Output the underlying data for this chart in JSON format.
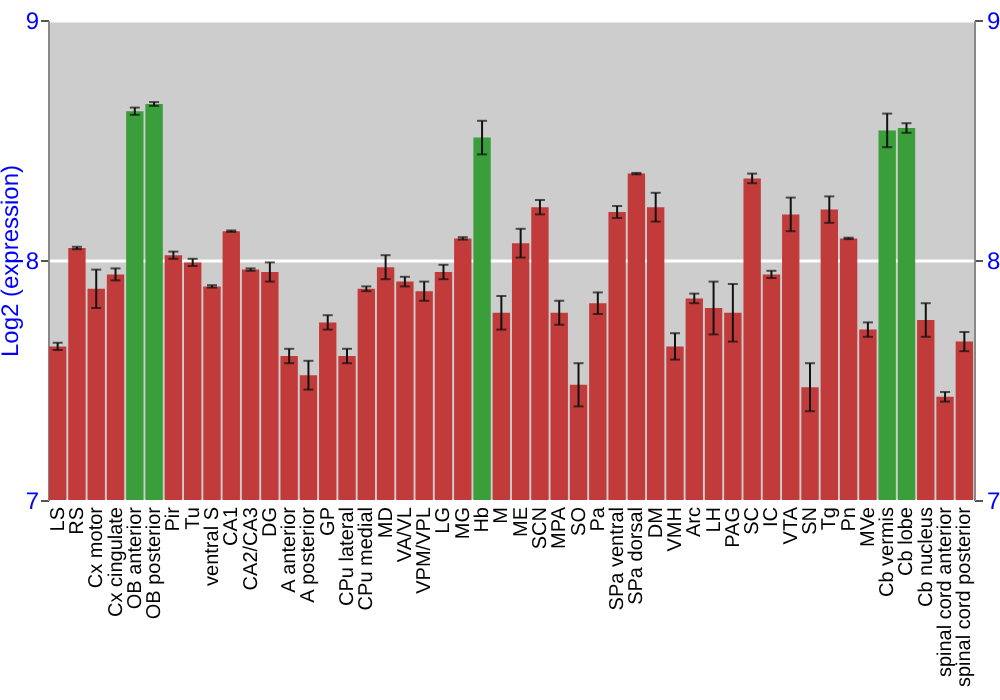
{
  "chart_data": {
    "type": "bar",
    "ylabel": "Log2 (expression)",
    "categories": [
      "LS",
      "RS",
      "Cx motor",
      "Cx cingulate",
      "OB anterior",
      "OB posterior",
      "Pir",
      "Tu",
      "ventral S",
      "CA1",
      "CA2/CA3",
      "DG",
      "A anterior",
      "A posterior",
      "GP",
      "CPu lateral",
      "CPu medial",
      "MD",
      "VA/VL",
      "VPM/VPL",
      "LG",
      "MG",
      "Hb",
      "M",
      "ME",
      "SCN",
      "MPA",
      "SO",
      "Pa",
      "SPa ventral",
      "SPa dorsal",
      "DM",
      "VMH",
      "Arc",
      "LH",
      "PAG",
      "SC",
      "IC",
      "VTA",
      "SN",
      "Tg",
      "Pn",
      "MVe",
      "Cb vermis",
      "Cb lobe",
      "Cb nucleus",
      "spinal cord anterior",
      "spinal cord posterior"
    ],
    "values": [
      7.64,
      8.05,
      7.88,
      7.94,
      8.62,
      8.65,
      8.02,
      7.99,
      7.89,
      8.12,
      7.96,
      7.95,
      7.6,
      7.52,
      7.74,
      7.6,
      7.88,
      7.97,
      7.91,
      7.87,
      7.95,
      8.09,
      8.51,
      7.78,
      8.07,
      8.22,
      7.78,
      7.48,
      7.82,
      8.2,
      8.36,
      8.22,
      7.64,
      7.84,
      7.8,
      7.78,
      8.34,
      7.94,
      8.19,
      7.47,
      8.21,
      8.09,
      7.71,
      8.54,
      8.55,
      7.75,
      7.43,
      7.66
    ],
    "errors": [
      0.015,
      0.005,
      0.08,
      0.025,
      0.015,
      0.008,
      0.015,
      0.015,
      0.005,
      0.003,
      0.005,
      0.04,
      0.03,
      0.06,
      0.03,
      0.03,
      0.01,
      0.05,
      0.02,
      0.04,
      0.03,
      0.005,
      0.07,
      0.07,
      0.06,
      0.03,
      0.05,
      0.09,
      0.045,
      0.025,
      0.003,
      0.06,
      0.055,
      0.02,
      0.11,
      0.12,
      0.02,
      0.015,
      0.07,
      0.1,
      0.055,
      0.003,
      0.03,
      0.07,
      0.02,
      0.07,
      0.02,
      0.04
    ],
    "colors": [
      "#c23b3b",
      "#c23b3b",
      "#c23b3b",
      "#c23b3b",
      "#3a9e3a",
      "#3a9e3a",
      "#c23b3b",
      "#c23b3b",
      "#c23b3b",
      "#c23b3b",
      "#c23b3b",
      "#c23b3b",
      "#c23b3b",
      "#c23b3b",
      "#c23b3b",
      "#c23b3b",
      "#c23b3b",
      "#c23b3b",
      "#c23b3b",
      "#c23b3b",
      "#c23b3b",
      "#c23b3b",
      "#3a9e3a",
      "#c23b3b",
      "#c23b3b",
      "#c23b3b",
      "#c23b3b",
      "#c23b3b",
      "#c23b3b",
      "#c23b3b",
      "#c23b3b",
      "#c23b3b",
      "#c23b3b",
      "#c23b3b",
      "#c23b3b",
      "#c23b3b",
      "#c23b3b",
      "#c23b3b",
      "#c23b3b",
      "#c23b3b",
      "#c23b3b",
      "#c23b3b",
      "#c23b3b",
      "#3a9e3a",
      "#3a9e3a",
      "#c23b3b",
      "#c23b3b",
      "#c23b3b"
    ],
    "ylim": [
      7,
      9
    ],
    "yticks": [
      7,
      8,
      9
    ],
    "y2lim": [
      7,
      9
    ],
    "y2ticks": [
      7,
      8,
      9
    ],
    "grid": "y"
  }
}
